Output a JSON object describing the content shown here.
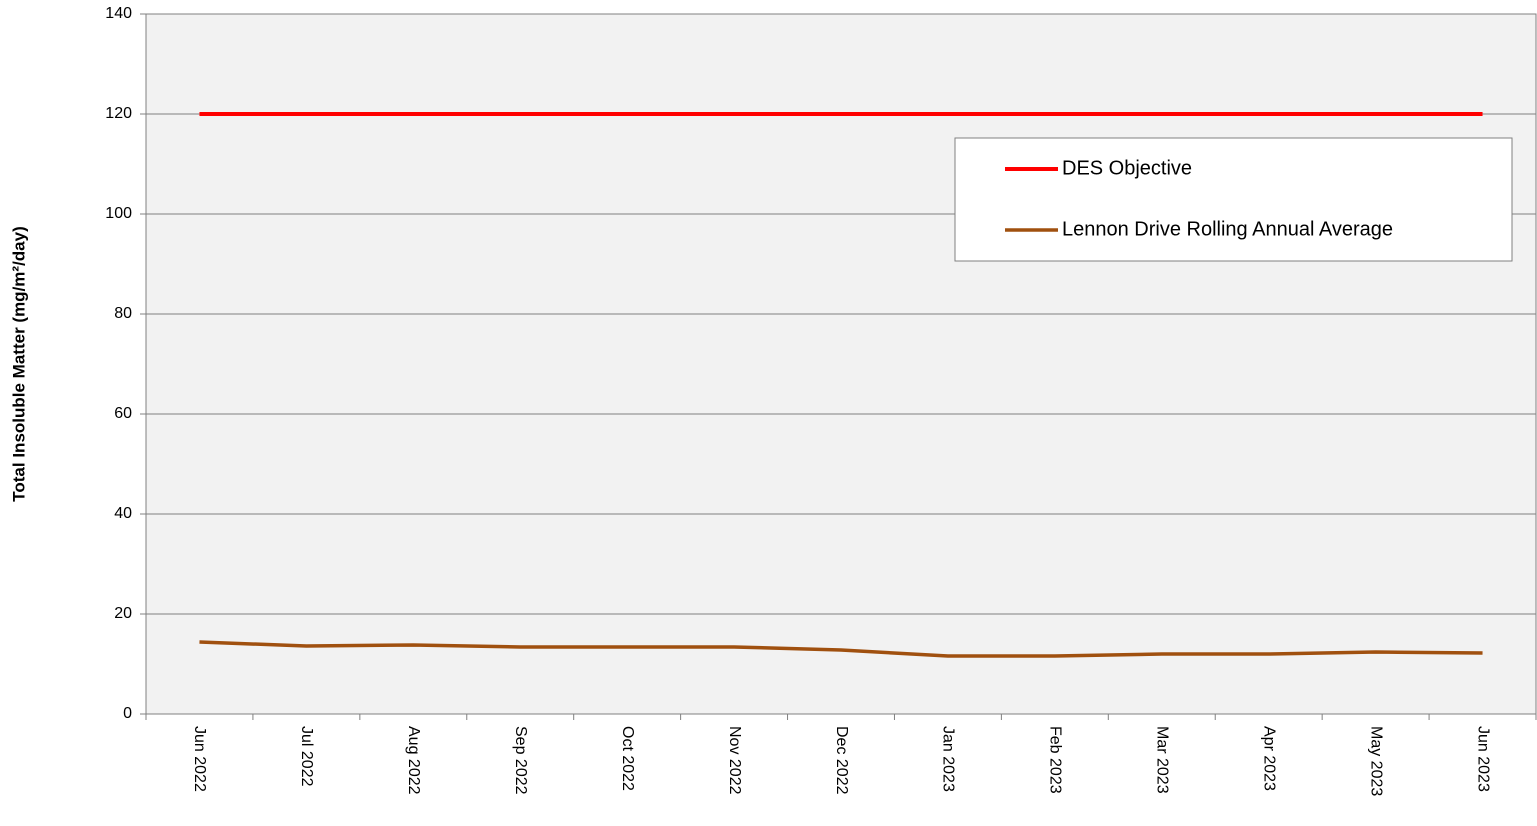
{
  "chart_data": {
    "type": "line",
    "y_label": "Total Insoluble Matter (mg/m²/day)",
    "categories": [
      "Jun 2022",
      "Jul 2022",
      "Aug 2022",
      "Sep 2022",
      "Oct 2022",
      "Nov 2022",
      "Dec 2022",
      "Jan 2023",
      "Feb 2023",
      "Mar 2023",
      "Apr 2023",
      "May 2023",
      "Jun 2023"
    ],
    "series": [
      {
        "name": "DES Objective",
        "color": "#ff0000",
        "values": [
          120,
          120,
          120,
          120,
          120,
          120,
          120,
          120,
          120,
          120,
          120,
          120,
          120
        ]
      },
      {
        "name": "Lennon Drive Rolling Annual Average",
        "color": "#a0500f",
        "values": [
          14.4,
          13.6,
          13.8,
          13.4,
          13.4,
          13.4,
          12.8,
          11.6,
          11.6,
          12.0,
          12.0,
          12.4,
          12.2
        ]
      }
    ],
    "ylim": [
      0,
      140
    ],
    "yticks": [
      0,
      20,
      40,
      60,
      80,
      100,
      120,
      140
    ],
    "grid": true,
    "legend": "upper right"
  }
}
